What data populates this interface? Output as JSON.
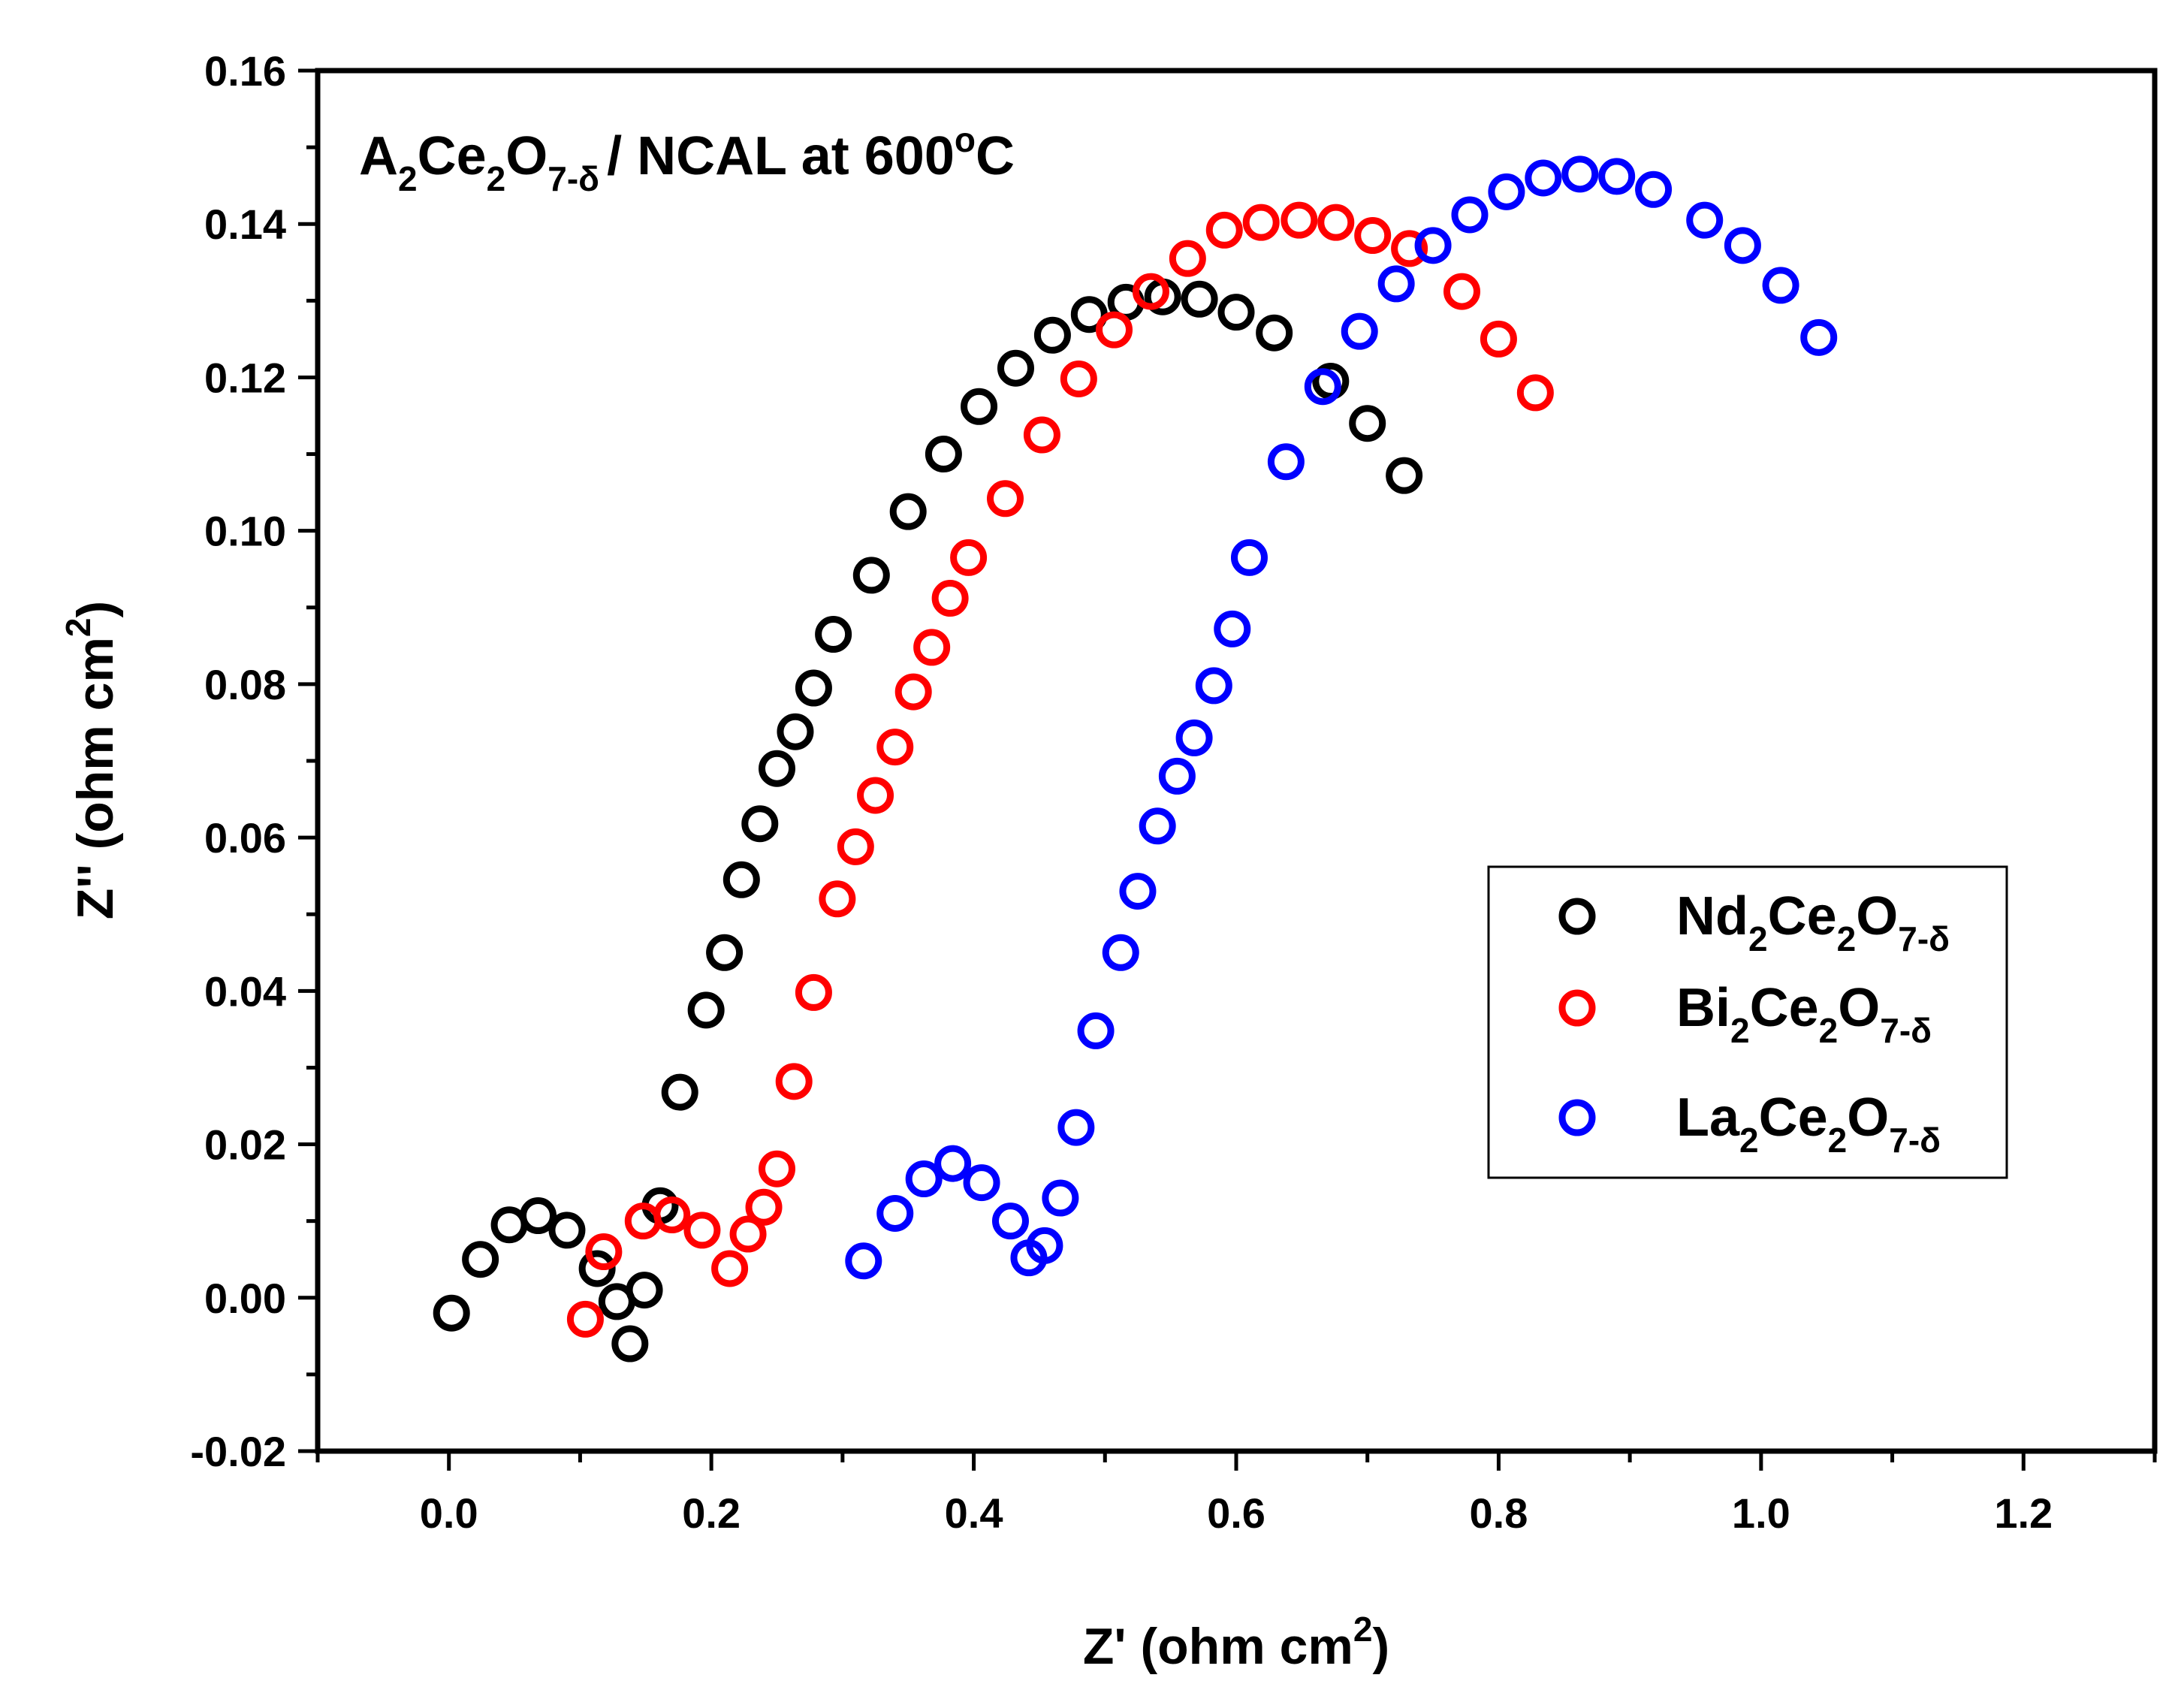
{
  "chart_data": {
    "type": "scatter",
    "title": {
      "base": "A",
      "sub1": "2",
      "mid": "Ce",
      "sub2": "2",
      "o": "O",
      "sub3": "7-δ",
      "rest": "/ NCAL at 600",
      "sup": "o",
      "unit": "C"
    },
    "xlabel": {
      "main": "Z' (ohm cm",
      "sup": "2",
      "end": ")"
    },
    "ylabel": {
      "main": "Z'' (ohm cm",
      "sup": "2",
      "end": ")"
    },
    "xlim": [
      -0.1,
      1.3
    ],
    "ylim": [
      -0.02,
      0.16
    ],
    "xticks": [
      "0.0",
      "0.2",
      "0.4",
      "0.6",
      "0.8",
      "1.0",
      "1.2"
    ],
    "xtick_values": [
      0.0,
      0.2,
      0.4,
      0.6,
      0.8,
      1.0,
      1.2
    ],
    "yticks": [
      "-0.02",
      "0.00",
      "0.02",
      "0.04",
      "0.06",
      "0.08",
      "0.10",
      "0.12",
      "0.14",
      "0.16"
    ],
    "ytick_values": [
      -0.02,
      0.0,
      0.02,
      0.04,
      0.06,
      0.08,
      0.1,
      0.12,
      0.14,
      0.16
    ],
    "legend_position": "center-right",
    "series": [
      {
        "name": "Nd2Ce2O7-δ",
        "label": {
          "base": "Nd",
          "sub1": "2",
          "mid": "Ce",
          "sub2": "2",
          "o": "O",
          "sub3": "7-δ"
        },
        "color": "#000000",
        "x": [
          0.002,
          0.024,
          0.046,
          0.068,
          0.09,
          0.113,
          0.128,
          0.138,
          0.149,
          0.161,
          0.176,
          0.196,
          0.21,
          0.223,
          0.237,
          0.25,
          0.264,
          0.278,
          0.293,
          0.322,
          0.35,
          0.377,
          0.404,
          0.432,
          0.46,
          0.488,
          0.516,
          0.544,
          0.572,
          0.6,
          0.629,
          0.672,
          0.7,
          0.728
        ],
        "y": [
          -0.002,
          0.005,
          0.0095,
          0.0107,
          0.0088,
          0.0038,
          -0.0005,
          -0.006,
          0.001,
          0.012,
          0.0268,
          0.0375,
          0.045,
          0.0545,
          0.0618,
          0.069,
          0.0738,
          0.0795,
          0.0865,
          0.0942,
          0.1025,
          0.11,
          0.1162,
          0.1212,
          0.1255,
          0.1282,
          0.1298,
          0.1305,
          0.1302,
          0.1285,
          0.1258,
          0.1195,
          0.114,
          0.1072
        ]
      },
      {
        "name": "Bi2Ce2O7-δ",
        "label": {
          "base": "Bi",
          "sub1": "2",
          "mid": "Ce",
          "sub2": "2",
          "o": "O",
          "sub3": "7-δ"
        },
        "color": "#ff0000",
        "x": [
          0.104,
          0.118,
          0.148,
          0.17,
          0.193,
          0.214,
          0.228,
          0.24,
          0.25,
          0.263,
          0.278,
          0.296,
          0.31,
          0.325,
          0.34,
          0.354,
          0.368,
          0.382,
          0.396,
          0.424,
          0.452,
          0.48,
          0.507,
          0.535,
          0.563,
          0.591,
          0.619,
          0.648,
          0.676,
          0.704,
          0.732,
          0.772,
          0.8,
          0.828
        ],
        "y": [
          -0.0028,
          0.006,
          0.01,
          0.0108,
          0.0088,
          0.0038,
          0.0083,
          0.0118,
          0.0168,
          0.0282,
          0.0398,
          0.052,
          0.0588,
          0.0655,
          0.0718,
          0.079,
          0.0848,
          0.0912,
          0.0965,
          0.1042,
          0.1125,
          0.1198,
          0.1262,
          0.1312,
          0.1355,
          0.1392,
          0.1402,
          0.1405,
          0.1402,
          0.1385,
          0.1368,
          0.1312,
          0.125,
          0.118
        ]
      },
      {
        "name": "La2Ce2O7-δ",
        "label": {
          "base": "La",
          "sub1": "2",
          "mid": "Ce",
          "sub2": "2",
          "o": "O",
          "sub3": "7-δ"
        },
        "color": "#0000ff",
        "x": [
          0.316,
          0.34,
          0.362,
          0.384,
          0.406,
          0.428,
          0.442,
          0.454,
          0.466,
          0.478,
          0.493,
          0.512,
          0.525,
          0.54,
          0.555,
          0.568,
          0.583,
          0.597,
          0.61,
          0.638,
          0.666,
          0.694,
          0.722,
          0.75,
          0.778,
          0.806,
          0.834,
          0.862,
          0.89,
          0.918,
          0.957,
          0.986,
          1.015,
          1.044
        ],
        "y": [
          0.0048,
          0.011,
          0.0155,
          0.0175,
          0.015,
          0.01,
          0.0052,
          0.0068,
          0.013,
          0.0222,
          0.0348,
          0.045,
          0.053,
          0.0615,
          0.068,
          0.073,
          0.0798,
          0.0872,
          0.0965,
          0.109,
          0.1188,
          0.126,
          0.1322,
          0.1372,
          0.1412,
          0.1442,
          0.146,
          0.1465,
          0.1462,
          0.1445,
          0.1405,
          0.1372,
          0.132,
          0.1252
        ]
      }
    ]
  }
}
